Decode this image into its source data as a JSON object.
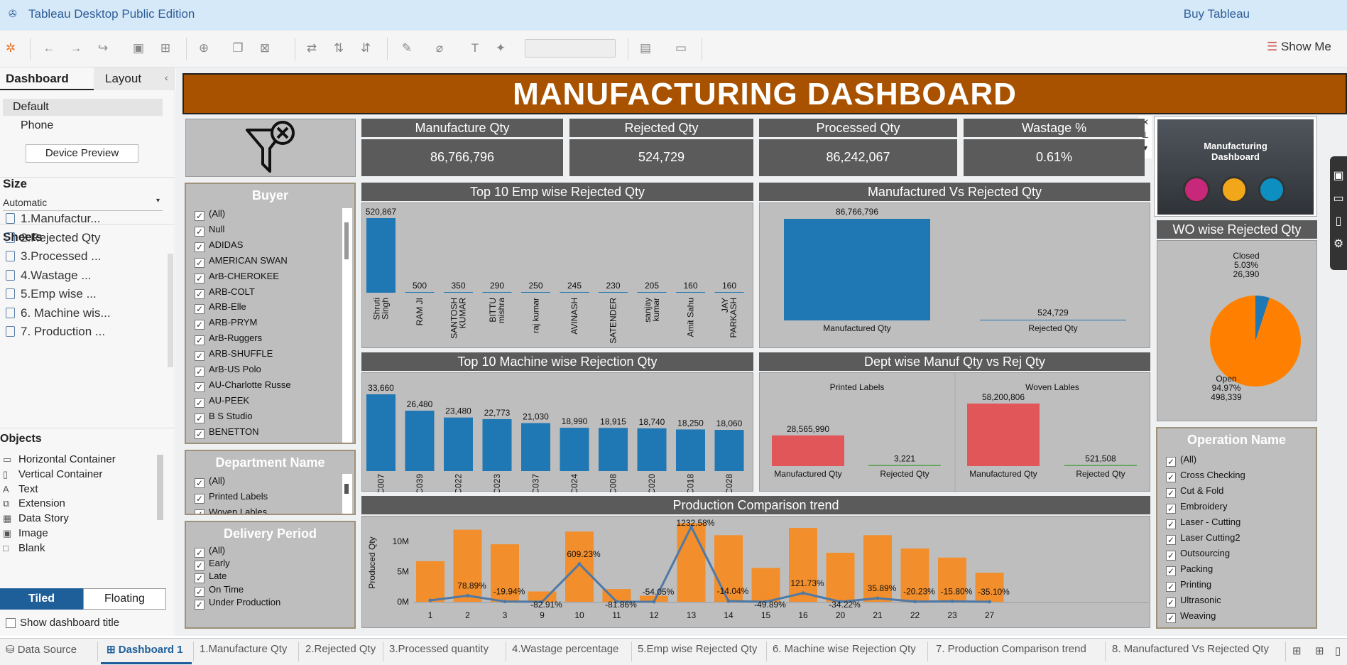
{
  "app": {
    "title": "Tableau Desktop Public Edition",
    "buy": "Buy Tableau",
    "show_me": "Show Me"
  },
  "left": {
    "tab_dashboard": "Dashboard",
    "tab_layout": "Layout",
    "device_default": "Default",
    "device_phone": "Phone",
    "device_preview": "Device Preview",
    "size_label": "Size",
    "size_value": "Automatic",
    "sheets_label": "Sheets",
    "sheets": [
      "1.Manufactur...",
      "2.Rejected Qty",
      "3.Processed ...",
      "4.Wastage ...",
      "5.Emp wise ...",
      "6. Machine wis...",
      "7. Production ..."
    ],
    "objects_label": "Objects",
    "objects": [
      "Horizontal Container",
      "Vertical Container",
      "Text",
      "Extension",
      "Data Story",
      "Image",
      "Blank"
    ],
    "tiled": "Tiled",
    "floating": "Floating",
    "show_title": "Show dashboard title"
  },
  "dash": {
    "title": "MANUFACTURING DASHBOARD",
    "kpis": [
      {
        "label": "Manufacture Qty",
        "value": "86,766,796"
      },
      {
        "label": "Rejected Qty",
        "value": "524,729"
      },
      {
        "label": "Processed Qty",
        "value": "86,242,067"
      },
      {
        "label": "Wastage %",
        "value": "0.61%"
      }
    ],
    "buyer_title": "Buyer",
    "buyers": [
      "(All)",
      "Null",
      "ADIDAS",
      "AMERICAN SWAN",
      "ArB-CHEROKEE",
      "ARB-COLT",
      "ARB-Elle",
      "ARB-PRYM",
      "ArB-Ruggers",
      "ARB-SHUFFLE",
      "ArB-US Polo",
      "AU-Charlotte Russe",
      "AU-PEEK",
      "B S Studio",
      "BENETTON"
    ],
    "dept_title": "Department Name",
    "depts": [
      "(All)",
      "Printed Labels",
      "Woven Lables"
    ],
    "delivery_title": "Delivery Period",
    "delivery": [
      "(All)",
      "Early",
      "Late",
      "On Time",
      "Under Production"
    ],
    "operation_title": "Operation Name",
    "operations": [
      "(All)",
      "Cross Checking",
      "Cut  & Fold",
      "Embroidery",
      "Laser - Cutting",
      "Laser Cutting2",
      "Outsourcing",
      "Packing",
      "Printing",
      "Ultrasonic",
      "Weaving"
    ],
    "thumb": {
      "line1": "Manufacturing",
      "line2": "Dashboard"
    }
  },
  "chart_data": [
    {
      "type": "bar",
      "title": "Top 10 Emp wise Rejected Qty",
      "categories": [
        "Shruti Singh",
        "RAM JI",
        "SANTOSH KUMAR",
        "BITTU mishra",
        "raj  kumar",
        "AVINASH",
        "SATENDER",
        "sanjay kumar",
        "Amit Sahu",
        "JAY PARKASH"
      ],
      "values": [
        520867,
        500,
        350,
        290,
        250,
        245,
        230,
        205,
        160,
        160
      ],
      "labels": [
        "520,867",
        "500",
        "350",
        "290",
        "250",
        "245",
        "230",
        "205",
        "160",
        "160"
      ],
      "color": "#1f77b4"
    },
    {
      "type": "bar",
      "title": "Manufactured Vs Rejected Qty",
      "categories": [
        "Manufactured Qty",
        "Rejected Qty"
      ],
      "values": [
        86766796,
        524729
      ],
      "labels": [
        "86,766,796",
        "524,729"
      ],
      "color": "#1f77b4"
    },
    {
      "type": "bar",
      "title": "Top 10 Machine wise Rejection Qty",
      "categories": [
        "C007",
        "C039",
        "C022",
        "C023",
        "C037",
        "C024",
        "C008",
        "C020",
        "C018",
        "C028"
      ],
      "values": [
        33660,
        26480,
        23480,
        22773,
        21030,
        18990,
        18915,
        18740,
        18250,
        18060
      ],
      "labels": [
        "33,660",
        "26,480",
        "23,480",
        "22,773",
        "21,030",
        "18,990",
        "18,915",
        "18,740",
        "18,250",
        "18,060"
      ],
      "color": "#1f77b4"
    },
    {
      "type": "bar",
      "title": "Dept wise Manuf Qty vs Rej Qty",
      "groups": [
        "Printed Labels",
        "Woven Lables"
      ],
      "categories": [
        "Manufactured Qty",
        "Rejected Qty"
      ],
      "series": [
        {
          "values": [
            28565990,
            3221
          ],
          "labels": [
            "28,565,990",
            "3,221"
          ]
        },
        {
          "values": [
            58200806,
            521508
          ],
          "labels": [
            "58,200,806",
            "521,508"
          ]
        }
      ],
      "color": "#e15759"
    },
    {
      "type": "pie",
      "title": "WO wise Rejected Qty",
      "slices": [
        {
          "name": "Closed",
          "pct": "5.03%",
          "value": 26390,
          "label": "26,390",
          "color": "#1f77b4"
        },
        {
          "name": "Open",
          "pct": "94.97%",
          "value": 498339,
          "label": "498,339",
          "color": "#ff8000"
        }
      ]
    },
    {
      "type": "bar",
      "title": "Production Comparison trend",
      "ylabel": "Produced Qty",
      "yticks": [
        "0M",
        "5M",
        "10M"
      ],
      "ylim": [
        0,
        13500000
      ],
      "categories": [
        "1",
        "2",
        "3",
        "9",
        "10",
        "11",
        "12",
        "13",
        "14",
        "15",
        "16",
        "20",
        "21",
        "22",
        "23",
        "27"
      ],
      "values": [
        6700000,
        11900000,
        9500000,
        1700000,
        11600000,
        2100000,
        1000000,
        13000000,
        11000000,
        5600000,
        12200000,
        8100000,
        11000000,
        8800000,
        7300000,
        4800000
      ],
      "pct_labels": [
        "",
        "78.89%",
        "-19.94%",
        "-82.91%",
        "609.23%",
        "-81.86%",
        "-54.05%",
        "1232.58%",
        "-14.04%",
        "-49.89%",
        "121.73%",
        "-34.22%",
        "35.89%",
        "-20.23%",
        "-15.80%",
        "-35.10%"
      ],
      "pct_values": [
        0,
        78.89,
        -19.94,
        -82.91,
        609.23,
        -81.86,
        -54.05,
        1232.58,
        -14.04,
        -49.89,
        121.73,
        -34.22,
        35.89,
        -20.23,
        -15.8,
        -35.1
      ],
      "bar_color": "#f28e2b",
      "line_color": "#4e79a7"
    }
  ],
  "tabs": [
    "Data Source",
    "Dashboard 1",
    "1.Manufacture Qty",
    "2.Rejected Qty",
    "3.Processed quantity",
    "4.Wastage percentage",
    "5.Emp wise Rejected Qty",
    "6. Machine wise Rejection Qty",
    "7. Production Comparison trend",
    "8. Manufactured Vs Rejected Qty"
  ]
}
